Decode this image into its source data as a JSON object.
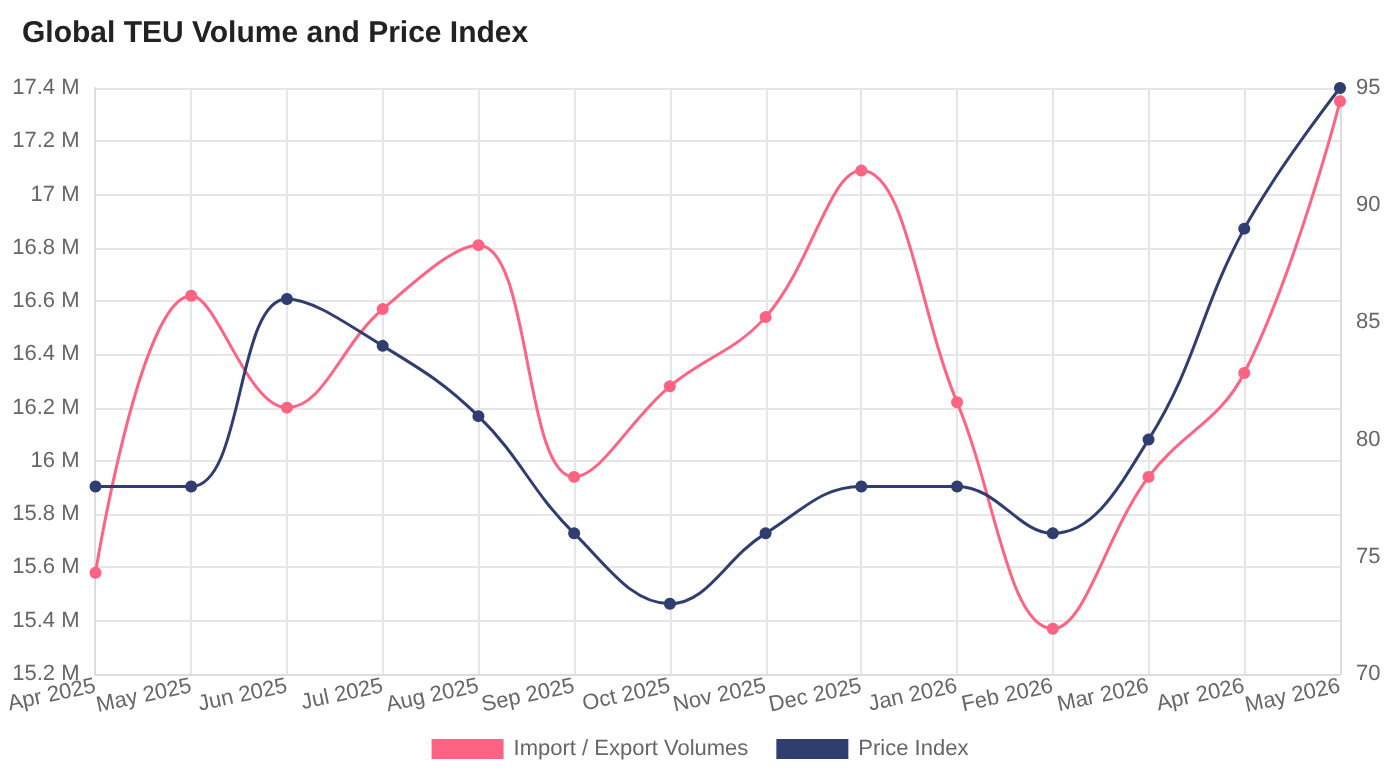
{
  "chart_data": {
    "type": "line",
    "title": "Global TEU Volume and Price Index",
    "categories": [
      "Apr 2025",
      "May 2025",
      "Jun 2025",
      "Jul 2025",
      "Aug 2025",
      "Sep 2025",
      "Oct 2025",
      "Nov 2025",
      "Dec 2025",
      "Jan 2026",
      "Feb 2026",
      "Mar 2026",
      "Apr 2026",
      "May 2026"
    ],
    "series": [
      {
        "name": "Import / Export Volumes",
        "color": "#ff6384",
        "values": [
          15580000,
          16620000,
          16200000,
          16570000,
          16810000,
          15940000,
          16280000,
          16540000,
          17090000,
          16220000,
          15370000,
          15940000,
          16330000,
          17350000
        ]
      },
      {
        "name": "Price Index",
        "color": "#2f3e6e",
        "axis": "y2",
        "values": [
          78,
          78,
          86,
          84,
          81,
          76,
          73,
          76,
          78,
          78,
          76,
          80,
          89,
          95
        ]
      }
    ],
    "ylim": [
      15200000,
      17400000
    ],
    "yticks": [
      {
        "value": 15200000,
        "label": "15.2 M"
      },
      {
        "value": 15400000,
        "label": "15.4 M"
      },
      {
        "value": 15600000,
        "label": "15.6 M"
      },
      {
        "value": 15800000,
        "label": "15.8 M"
      },
      {
        "value": 16000000,
        "label": "16 M"
      },
      {
        "value": 16200000,
        "label": "16.2 M"
      },
      {
        "value": 16400000,
        "label": "16.4 M"
      },
      {
        "value": 16600000,
        "label": "16.6 M"
      },
      {
        "value": 16800000,
        "label": "16.8 M"
      },
      {
        "value": 17000000,
        "label": "17 M"
      },
      {
        "value": 17200000,
        "label": "17.2 M"
      },
      {
        "value": 17400000,
        "label": "17.4 M"
      }
    ],
    "y2lim": [
      70,
      95
    ],
    "y2ticks": [
      70,
      75,
      80,
      85,
      90,
      95
    ],
    "grid": true,
    "legend": "bottom",
    "marker": "circle",
    "line_style": "solid"
  }
}
